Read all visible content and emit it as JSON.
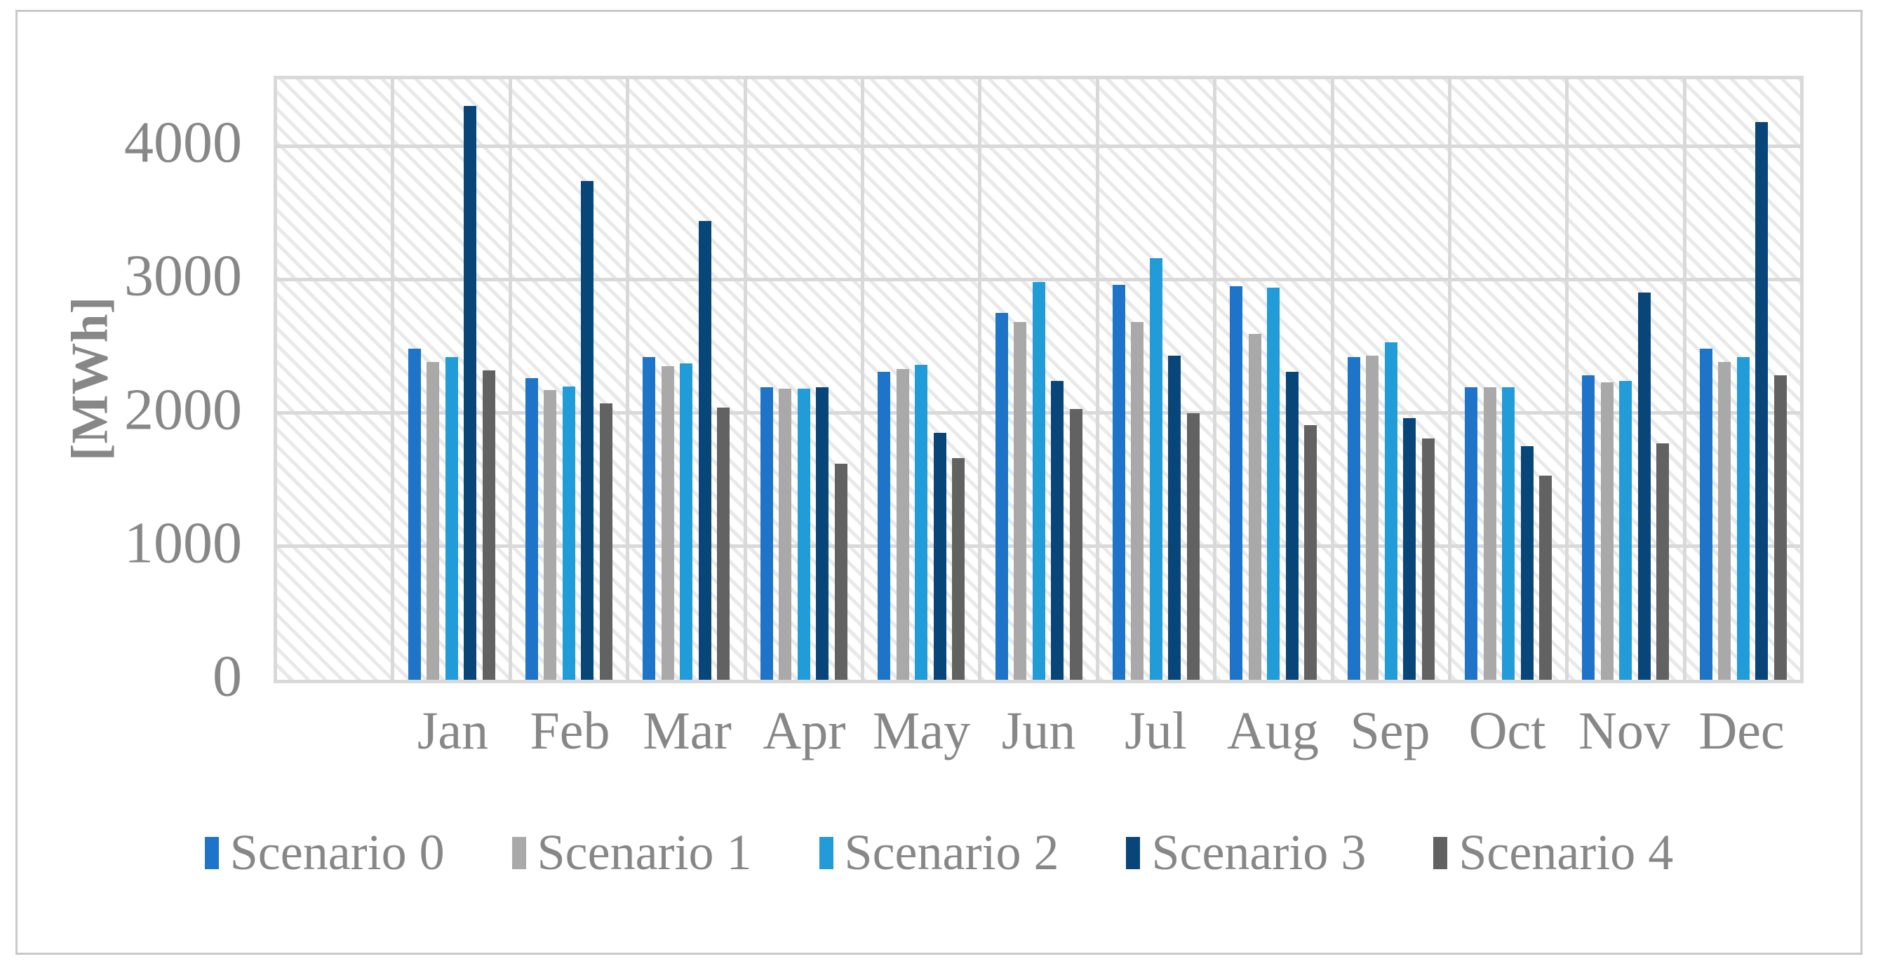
{
  "figure": {
    "frame_color": "#c9c9c9",
    "background_color": "#ffffff",
    "text_color": "#878787",
    "gridline_color": "#d9d9d9",
    "plot_background": "diagonal-hatch"
  },
  "chart_data": {
    "type": "bar",
    "title": "",
    "xlabel": "",
    "ylabel": "[MWh]",
    "ylim": [
      0,
      4500
    ],
    "y_ticks": [
      0,
      1000,
      2000,
      3000,
      4000
    ],
    "grid": true,
    "legend_position": "bottom",
    "categories": [
      "Jan",
      "Feb",
      "Mar",
      "Apr",
      "May",
      "Jun",
      "Jul",
      "Aug",
      "Sep",
      "Oct",
      "Nov",
      "Dec"
    ],
    "series": [
      {
        "name": "Scenario 0",
        "color": "#1E74C8",
        "values": [
          2480,
          2260,
          2420,
          2190,
          2310,
          2750,
          2960,
          2950,
          2420,
          2190,
          2280,
          2480
        ]
      },
      {
        "name": "Scenario 1",
        "color": "#A9A9A9",
        "values": [
          2380,
          2170,
          2350,
          2180,
          2330,
          2680,
          2680,
          2590,
          2430,
          2190,
          2230,
          2380
        ]
      },
      {
        "name": "Scenario 2",
        "color": "#219CD9",
        "values": [
          2420,
          2200,
          2370,
          2180,
          2360,
          2980,
          3160,
          2940,
          2530,
          2190,
          2240,
          2420
        ]
      },
      {
        "name": "Scenario 3",
        "color": "#084679",
        "values": [
          4300,
          3740,
          3440,
          2190,
          1850,
          2240,
          2430,
          2310,
          1960,
          1750,
          2900,
          4180
        ]
      },
      {
        "name": "Scenario 4",
        "color": "#626262",
        "values": [
          2320,
          2070,
          2040,
          1620,
          1660,
          2030,
          2000,
          1910,
          1810,
          1530,
          1770,
          2280
        ]
      }
    ]
  }
}
